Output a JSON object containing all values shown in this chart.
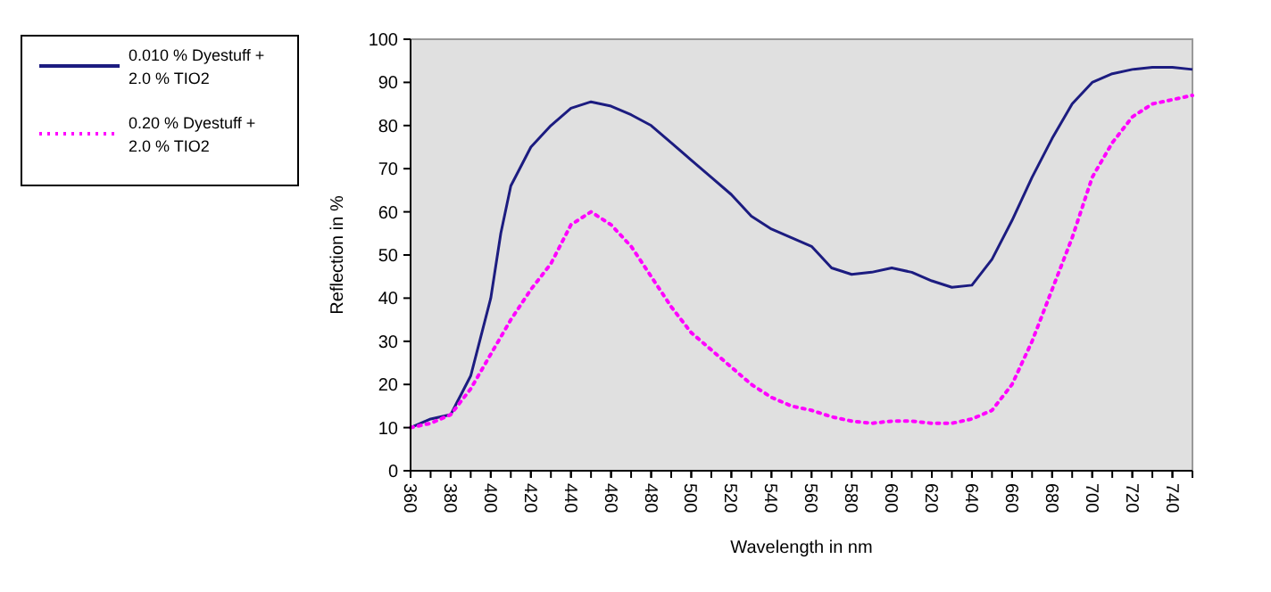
{
  "chart_data": {
    "type": "line",
    "xlabel": "Wavelength in nm",
    "ylabel": "Reflection in %",
    "x": [
      360,
      370,
      380,
      390,
      400,
      405,
      410,
      420,
      430,
      440,
      450,
      460,
      470,
      480,
      490,
      500,
      510,
      520,
      530,
      540,
      550,
      560,
      570,
      580,
      590,
      600,
      610,
      620,
      630,
      640,
      650,
      660,
      670,
      680,
      690,
      700,
      710,
      720,
      730,
      740,
      750
    ],
    "series": [
      {
        "name": "0.010 % Dyestuff + 2.0 % TIO2",
        "color": "#1c1c80",
        "line_style": "solid",
        "values": [
          10,
          12,
          13,
          22,
          40,
          55,
          66,
          75,
          80,
          84,
          85.5,
          84.5,
          82.5,
          80,
          76,
          72,
          68,
          64,
          59,
          56,
          54,
          52,
          47,
          45.5,
          46,
          47,
          46,
          44,
          42.5,
          43,
          49,
          58,
          68,
          77,
          85,
          90,
          92,
          93,
          93.5,
          93.5,
          93
        ]
      },
      {
        "name": "0.20 % Dyestuff + 2.0 % TIO2",
        "color": "#ff00ff",
        "line_style": "dotted",
        "values": [
          10,
          11,
          13,
          19,
          27,
          31,
          35,
          42,
          48,
          57,
          60,
          57,
          52,
          45,
          38,
          32,
          28,
          24,
          20,
          17,
          15,
          14,
          12.5,
          11.5,
          11,
          11.5,
          11.5,
          11,
          11,
          12,
          14,
          20,
          30,
          42,
          54,
          68,
          76,
          82,
          85,
          86,
          87
        ]
      }
    ],
    "xlim": [
      360,
      750
    ],
    "xticks": [
      360,
      380,
      400,
      420,
      440,
      460,
      480,
      500,
      520,
      540,
      560,
      580,
      600,
      620,
      640,
      660,
      680,
      700,
      720,
      740
    ],
    "ylim": [
      0,
      100
    ],
    "yticks": [
      0,
      10,
      20,
      30,
      40,
      50,
      60,
      70,
      80,
      90,
      100
    ],
    "grid": false,
    "marker": "none",
    "legend": "top left"
  }
}
